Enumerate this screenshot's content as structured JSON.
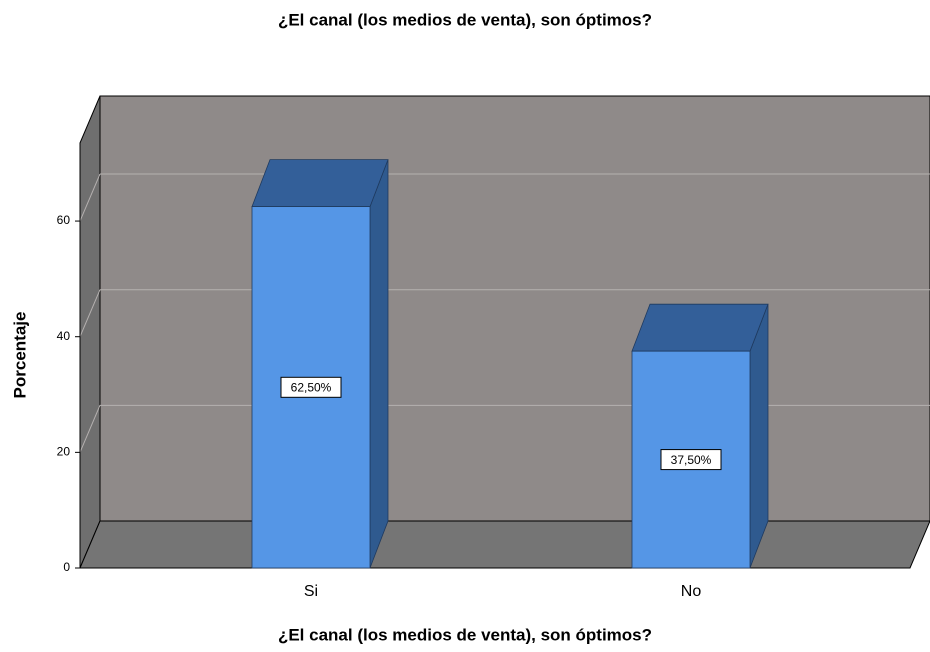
{
  "chart_data": {
    "type": "bar3d",
    "title": "¿El canal (los medios de venta), son óptimos?",
    "x_label": "¿El canal (los medios de venta), son óptimos?",
    "y_label": "Porcentaje",
    "categories": [
      "Si",
      "No"
    ],
    "values": [
      62.5,
      37.5
    ],
    "value_labels": [
      "62,50%",
      "37,50%"
    ],
    "color": "#5596e6",
    "ylim": [
      0,
      73.5
    ],
    "yticks": [
      0,
      20,
      40,
      60
    ],
    "grid": true
  }
}
